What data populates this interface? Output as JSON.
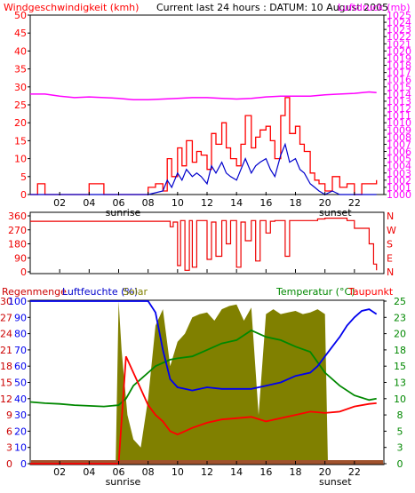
{
  "header": {
    "left_title": "Windgeschwindigkeit (kmh)",
    "center_title": "Current last 24 hours : DATUM: 10 August 2005",
    "right_title": "Luftdruck (mb)"
  },
  "x_axis": {
    "hours": [
      "02",
      "04",
      "06",
      "08",
      "10",
      "12",
      "14",
      "16",
      "18",
      "20",
      "22"
    ],
    "sunrise_label": "sunrise",
    "sunset_label": "sunset"
  },
  "bottom_header": {
    "left_title_1": "Regenmenge",
    "left_title_2": "Luftfeuchte (%)",
    "left_title_3": "Solar",
    "right_title_1": "Temperatur (°C)",
    "right_title_2": "Taupunkt"
  },
  "colors": {
    "wind_gust": "#ff0000",
    "wind_avg": "#0000cc",
    "pressure": "#ff00ff",
    "direction": "#ee0000",
    "humidity": "#0000ee",
    "temperature": "#008800",
    "dewpoint": "#ff0000",
    "solar": "#808000",
    "rain": "#a0522d",
    "frame": "#000000"
  },
  "chart_data": [
    {
      "type": "line",
      "panel": "wind_pressure",
      "x_unit": "hour",
      "yleft": {
        "label": "Windgeschwindigkeit (kmh)",
        "ticks": [
          "0",
          "5",
          "10",
          "15",
          "20",
          "25",
          "30",
          "35",
          "40",
          "45",
          "50"
        ],
        "range": [
          0,
          50
        ]
      },
      "yright": {
        "label": "Luftdruck (mb)",
        "ticks": [
          "1000",
          "1001",
          "1002",
          "1003",
          "1004",
          "1005",
          "1006",
          "1007",
          "1008",
          "1009",
          "1010",
          "1011",
          "1012",
          "1013",
          "1014",
          "1015",
          "1016",
          "1017",
          "1018",
          "1019",
          "1020",
          "1021",
          "1022",
          "1023",
          "1024",
          "1025"
        ],
        "range": [
          1000,
          1025
        ]
      },
      "series": [
        {
          "key": "gust",
          "x": [
            0,
            0.5,
            1,
            2,
            3,
            3.5,
            4,
            5,
            6,
            7,
            7.5,
            8,
            8.5,
            9,
            9.3,
            9.6,
            10,
            10.3,
            10.6,
            11,
            11.3,
            11.6,
            12,
            12.3,
            12.6,
            13,
            13.3,
            13.6,
            14,
            14.3,
            14.6,
            15,
            15.3,
            15.6,
            16,
            16.3,
            16.6,
            17,
            17.3,
            17.6,
            18,
            18.3,
            18.6,
            19,
            19.3,
            19.6,
            20,
            20.5,
            21,
            21.5,
            22,
            22.5,
            23,
            23.5
          ],
          "values": [
            0,
            3,
            0,
            0,
            0,
            0,
            3,
            0,
            0,
            0,
            0,
            2,
            3,
            1,
            10,
            5,
            13,
            8,
            15,
            9,
            12,
            11,
            7,
            17,
            14,
            20,
            13,
            10,
            8,
            14,
            22,
            13,
            16,
            18,
            19,
            15,
            10,
            22,
            27,
            17,
            19,
            14,
            12,
            6,
            4,
            3,
            1,
            5,
            2,
            3,
            0,
            3,
            3,
            4
          ]
        },
        {
          "key": "avg",
          "x": [
            0,
            1,
            2,
            3,
            4,
            5,
            6,
            7,
            8,
            9,
            9.3,
            9.6,
            10,
            10.3,
            10.6,
            11,
            11.3,
            11.6,
            12,
            12.3,
            12.6,
            13,
            13.3,
            13.6,
            14,
            14.3,
            14.6,
            15,
            15.3,
            15.6,
            16,
            16.3,
            16.6,
            17,
            17.3,
            17.6,
            18,
            18.3,
            18.6,
            19,
            19.3,
            19.6,
            20,
            20.5,
            21,
            22,
            23,
            23.5
          ],
          "values": [
            0,
            0,
            0,
            0,
            0,
            0,
            0,
            0,
            0,
            1,
            4,
            2,
            6,
            4,
            7,
            5,
            6,
            5,
            3,
            8,
            6,
            9,
            6,
            5,
            4,
            7,
            10,
            6,
            8,
            9,
            10,
            7,
            5,
            11,
            14,
            9,
            10,
            7,
            6,
            3,
            2,
            1,
            0,
            1,
            0,
            0,
            0,
            0
          ]
        },
        {
          "key": "pressure",
          "x": [
            0,
            1,
            2,
            3,
            4,
            5,
            6,
            7,
            8,
            9,
            10,
            11,
            12,
            13,
            14,
            15,
            16,
            17,
            18,
            19,
            20,
            21,
            22,
            23,
            23.5
          ],
          "values": [
            1014.0,
            1014.0,
            1013.7,
            1013.5,
            1013.6,
            1013.5,
            1013.4,
            1013.2,
            1013.2,
            1013.3,
            1013.4,
            1013.5,
            1013.5,
            1013.4,
            1013.3,
            1013.4,
            1013.6,
            1013.7,
            1013.7,
            1013.7,
            1013.9,
            1014.0,
            1014.1,
            1014.3,
            1014.2
          ]
        }
      ]
    },
    {
      "type": "line",
      "panel": "direction",
      "yleft": {
        "ticks": [
          "0",
          "90",
          "180",
          "270",
          "360"
        ],
        "range": [
          0,
          360
        ]
      },
      "yright": {
        "ticks": [
          "N",
          "W",
          "S",
          "E",
          "N"
        ]
      },
      "series": [
        {
          "key": "direction",
          "x": [
            0,
            1,
            2,
            3,
            4,
            5,
            6,
            7,
            8,
            9,
            9.5,
            9.7,
            10,
            10.2,
            10.5,
            10.8,
            11,
            11.3,
            11.6,
            12,
            12.3,
            12.6,
            13,
            13.3,
            13.6,
            14,
            14.3,
            14.6,
            15,
            15.3,
            15.6,
            16,
            16.3,
            16.6,
            17,
            17.3,
            17.6,
            18,
            18.5,
            19,
            19.5,
            20,
            20.5,
            21,
            21.5,
            22,
            22.5,
            23,
            23.3,
            23.5
          ],
          "values": [
            325,
            325,
            325,
            325,
            325,
            325,
            325,
            325,
            325,
            325,
            290,
            320,
            40,
            330,
            10,
            330,
            30,
            330,
            330,
            80,
            320,
            100,
            330,
            180,
            330,
            30,
            320,
            200,
            330,
            70,
            330,
            250,
            325,
            330,
            330,
            100,
            330,
            330,
            330,
            330,
            340,
            345,
            345,
            345,
            330,
            280,
            280,
            180,
            50,
            10
          ]
        }
      ]
    },
    {
      "type": "area",
      "panel": "humidity_temperature",
      "yleft_inner": {
        "label": "Regenmenge",
        "ticks": [
          "0",
          "3",
          "6",
          "9",
          "12",
          "15",
          "18",
          "21",
          "24",
          "27",
          "30"
        ],
        "range": [
          0,
          30
        ]
      },
      "yleft": {
        "label": "Luftfeuchte (%)",
        "ticks": [
          "0",
          "10",
          "20",
          "30",
          "40",
          "50",
          "60",
          "70",
          "80",
          "90",
          "100"
        ],
        "range": [
          0,
          100
        ]
      },
      "yright": {
        "label": "Temperatur (°C)",
        "ticks": [
          "0",
          "3",
          "5",
          "8",
          "10",
          "13",
          "15",
          "18",
          "20",
          "23",
          "25"
        ],
        "range": [
          0,
          25
        ]
      },
      "series": [
        {
          "key": "solar",
          "x": [
            0,
            5.8,
            6,
            6.2,
            6.6,
            7,
            7.5,
            8,
            8.5,
            9,
            9.5,
            10,
            10.5,
            11,
            11.5,
            12,
            12.5,
            13,
            13.5,
            14,
            14.5,
            15,
            15.5,
            16,
            16.5,
            17,
            17.5,
            18,
            18.5,
            19,
            19.5,
            20,
            20.2,
            24
          ],
          "values": [
            0,
            0,
            100,
            70,
            30,
            15,
            10,
            40,
            85,
            95,
            60,
            75,
            80,
            90,
            92,
            93,
            88,
            95,
            97,
            98,
            88,
            96,
            30,
            92,
            95,
            92,
            93,
            94,
            92,
            93,
            95,
            92,
            0,
            0
          ]
        },
        {
          "key": "humidity",
          "x": [
            0,
            1,
            2,
            3,
            4,
            5,
            6,
            7,
            8,
            8.5,
            9,
            9.5,
            10,
            10.5,
            11,
            12,
            13,
            14,
            15,
            16,
            17,
            18,
            19,
            19.5,
            20,
            20.5,
            21,
            21.5,
            22,
            22.5,
            23,
            23.5
          ],
          "values": [
            100,
            100,
            100,
            100,
            100,
            100,
            100,
            100,
            100,
            93,
            70,
            52,
            47,
            46,
            45,
            47,
            46,
            46,
            46,
            48,
            50,
            54,
            56,
            60,
            66,
            72,
            78,
            85,
            90,
            94,
            95,
            92
          ]
        },
        {
          "key": "temperature",
          "x": [
            0,
            1,
            2,
            3,
            4,
            5,
            6,
            6.5,
            7,
            7.5,
            8,
            8.5,
            9,
            9.5,
            10,
            11,
            12,
            13,
            14,
            15,
            16,
            17,
            18,
            19,
            20,
            21,
            22,
            23,
            23.5
          ],
          "values": [
            9.5,
            9.3,
            9.2,
            9.0,
            8.9,
            8.8,
            9.0,
            10,
            12,
            13,
            14,
            15,
            15.5,
            16,
            16.2,
            16.5,
            17.5,
            18.5,
            19,
            20.5,
            19.5,
            19,
            18,
            17.2,
            14,
            12,
            10.5,
            9.8,
            10
          ]
        },
        {
          "key": "dewpoint",
          "x": [
            0,
            6,
            6.5,
            7,
            7.5,
            8,
            8.5,
            9,
            9.5,
            10,
            10.5,
            11,
            12,
            13,
            14,
            15,
            16,
            17,
            18,
            19,
            20,
            21,
            22,
            23,
            23.5
          ],
          "values": [
            0,
            0,
            16.5,
            14,
            11.5,
            9,
            7.5,
            6.5,
            5,
            4.5,
            5,
            5.5,
            6.3,
            6.8,
            7.0,
            7.2,
            6.5,
            7.0,
            7.5,
            8.0,
            7.8,
            8.0,
            8.8,
            9.2,
            9.3
          ]
        },
        {
          "key": "rain",
          "x": [
            0,
            24
          ],
          "values": [
            0,
            0
          ]
        }
      ]
    }
  ]
}
